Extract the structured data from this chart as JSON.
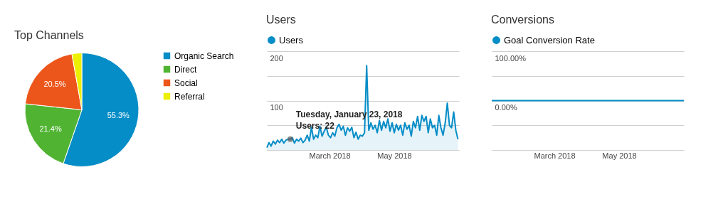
{
  "chart_data": [
    {
      "type": "pie",
      "title": "Top Channels",
      "categories": [
        "Organic Search",
        "Direct",
        "Social",
        "Referral"
      ],
      "values": [
        55.3,
        21.4,
        20.5,
        2.8
      ],
      "colors": [
        "#058dc7",
        "#50b432",
        "#ed561b",
        "#edef00"
      ],
      "value_labels": [
        "55.3%",
        "21.4%",
        "20.5%",
        null
      ],
      "legend": "right"
    },
    {
      "type": "area",
      "title": "Users",
      "legend": "top left",
      "grid": "y",
      "xlim": [
        "2018-01-01",
        "2018-07-01"
      ],
      "xticks": [
        {
          "value": "2018-03-01",
          "label": "March 2018"
        },
        {
          "value": "2018-05-01",
          "label": "May 2018"
        }
      ],
      "ylim": [
        0,
        200
      ],
      "yticks": [
        {
          "value": 0,
          "label": null
        },
        {
          "value": 50,
          "label": null
        },
        100,
        {
          "value": 150,
          "label": null
        },
        200
      ],
      "annotations": [
        {
          "text": "Tuesday, January 23, 2018\nUsers: 22",
          "x": "2018-01-23",
          "y": 22
        }
      ],
      "x": [
        "2018-01-01",
        "2018-01-03",
        "2018-01-05",
        "2018-01-07",
        "2018-01-09",
        "2018-01-11",
        "2018-01-13",
        "2018-01-15",
        "2018-01-17",
        "2018-01-19",
        "2018-01-21",
        "2018-01-23",
        "2018-01-25",
        "2018-01-27",
        "2018-01-29",
        "2018-01-31",
        "2018-02-02",
        "2018-02-04",
        "2018-02-06",
        "2018-02-08",
        "2018-02-10",
        "2018-02-12",
        "2018-02-14",
        "2018-02-16",
        "2018-02-18",
        "2018-02-20",
        "2018-02-22",
        "2018-02-24",
        "2018-02-26",
        "2018-02-28",
        "2018-03-02",
        "2018-03-04",
        "2018-03-06",
        "2018-03-08",
        "2018-03-10",
        "2018-03-12",
        "2018-03-14",
        "2018-03-16",
        "2018-03-18",
        "2018-03-20",
        "2018-03-22",
        "2018-03-24",
        "2018-03-26",
        "2018-03-28",
        "2018-03-30",
        "2018-04-01",
        "2018-04-03",
        "2018-04-05",
        "2018-04-07",
        "2018-04-09",
        "2018-04-11",
        "2018-04-13",
        "2018-04-15",
        "2018-04-17",
        "2018-04-19",
        "2018-04-21",
        "2018-04-23",
        "2018-04-25",
        "2018-04-27",
        "2018-04-29",
        "2018-05-01",
        "2018-05-03",
        "2018-05-05",
        "2018-05-07",
        "2018-05-09",
        "2018-05-11",
        "2018-05-13",
        "2018-05-15",
        "2018-05-17",
        "2018-05-19",
        "2018-05-21",
        "2018-05-23",
        "2018-05-25",
        "2018-05-27",
        "2018-05-29",
        "2018-05-31",
        "2018-06-02",
        "2018-06-04",
        "2018-06-06",
        "2018-06-08",
        "2018-06-10",
        "2018-06-12",
        "2018-06-14",
        "2018-06-16",
        "2018-06-18",
        "2018-06-20",
        "2018-06-22",
        "2018-06-24",
        "2018-06-26",
        "2018-06-28",
        "2018-06-30"
      ],
      "series": [
        {
          "name": "Users",
          "color": "#058dc7",
          "values": [
            5,
            15,
            8,
            18,
            12,
            20,
            15,
            22,
            14,
            20,
            22,
            22,
            25,
            14,
            22,
            18,
            24,
            15,
            20,
            30,
            18,
            46,
            22,
            30,
            25,
            48,
            28,
            38,
            46,
            30,
            25,
            35,
            28,
            45,
            52,
            40,
            48,
            30,
            45,
            38,
            46,
            25,
            36,
            22,
            30,
            28,
            35,
            171,
            40,
            55,
            42,
            50,
            35,
            60,
            40,
            58,
            45,
            63,
            38,
            55,
            35,
            52,
            40,
            50,
            30,
            55,
            42,
            50,
            28,
            58,
            45,
            68,
            40,
            70,
            58,
            68,
            35,
            63,
            45,
            50,
            30,
            70,
            45,
            30,
            55,
            95,
            50,
            45,
            77,
            40,
            22
          ]
        }
      ]
    },
    {
      "type": "line",
      "title": "Conversions",
      "legend": "top left",
      "grid": "y",
      "xlim": [
        "2018-01-01",
        "2018-07-01"
      ],
      "xticks": [
        {
          "value": "2018-03-01",
          "label": "March 2018"
        },
        {
          "value": "2018-05-01",
          "label": "May 2018"
        }
      ],
      "ylim": [
        -100,
        100
      ],
      "yticks": [
        {
          "value": -100,
          "label": null
        },
        {
          "value": -50,
          "label": null
        },
        {
          "value": 0,
          "label": "0.00%"
        },
        {
          "value": 50,
          "label": null
        },
        {
          "value": 100,
          "label": "100.00%"
        }
      ],
      "x": [
        "2018-01-01",
        "2018-07-01"
      ],
      "series": [
        {
          "name": "Goal Conversion Rate",
          "color": "#058dc7",
          "values": [
            0,
            0
          ]
        }
      ]
    }
  ]
}
